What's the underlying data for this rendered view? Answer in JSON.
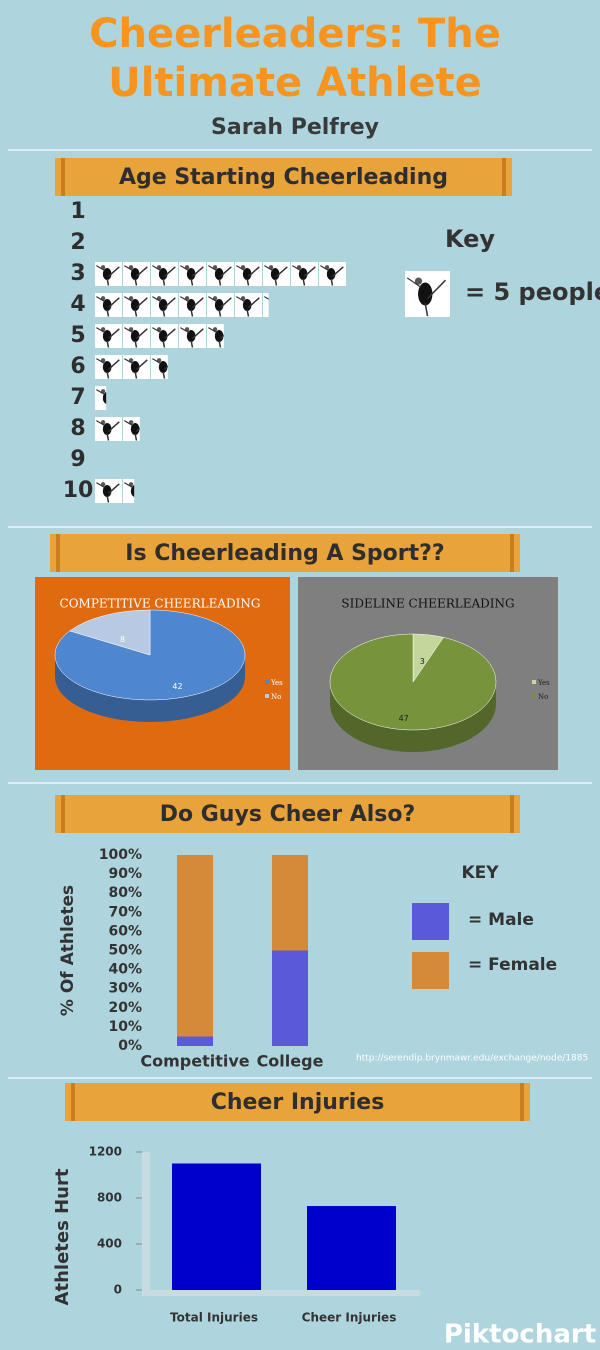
{
  "header": {
    "title_lines": [
      "Cheerleaders: The",
      "Ultimate Athlete"
    ],
    "author": "Sarah Pelfrey"
  },
  "sections": [
    "Age Starting Cheerleading",
    "Is Cheerleading A Sport??",
    "Do Guys Cheer Also?",
    "Cheer Injuries"
  ],
  "chart_data": [
    {
      "type": "pictograph",
      "categories": [
        "1",
        "2",
        "3",
        "4",
        "5",
        "6",
        "7",
        "8",
        "9",
        "10"
      ],
      "values": [
        0,
        0,
        45,
        31,
        23,
        13,
        2,
        8,
        0,
        7
      ],
      "unit": 5,
      "legend_title": "Key",
      "legend_label": "= 5 people"
    },
    {
      "type": "pie",
      "title": "COMPETITIVE CHEERLEADING",
      "categories": [
        "Yes",
        "No"
      ],
      "values": [
        42,
        8
      ],
      "colors": [
        "#4f86d0",
        "#b7c9e3"
      ],
      "background": "#e06a10"
    },
    {
      "type": "pie",
      "title": "SIDELINE CHEERLEADING",
      "categories": [
        "Yes",
        "No"
      ],
      "values": [
        3,
        47
      ],
      "colors": [
        "#c3d69b",
        "#77933c"
      ],
      "background": "#7f7f7f"
    },
    {
      "type": "stacked_bar",
      "categories": [
        "Competitive",
        "College"
      ],
      "series": [
        {
          "name": "= Male",
          "color": "#5959d9",
          "values": [
            5,
            50
          ]
        },
        {
          "name": "= Female",
          "color": "#d58a3a",
          "values": [
            95,
            50
          ]
        }
      ],
      "ylim": [
        0,
        100
      ],
      "yticks": [
        {
          "value": 0,
          "label": "0%"
        },
        {
          "value": 10,
          "label": "10%"
        },
        {
          "value": 20,
          "label": "20%"
        },
        {
          "value": 30,
          "label": "30%"
        },
        {
          "value": 40,
          "label": "40%"
        },
        {
          "value": 50,
          "label": "50%"
        },
        {
          "value": 60,
          "label": "60%"
        },
        {
          "value": 70,
          "label": "70%"
        },
        {
          "value": 80,
          "label": "80%"
        },
        {
          "value": 90,
          "label": "90%"
        },
        {
          "value": 100,
          "label": "100%"
        }
      ],
      "ylabel": "% Of Athletes",
      "legend_title": "KEY"
    },
    {
      "type": "bar",
      "categories": [
        "Total Injuries",
        "Cheer Injuries"
      ],
      "values": [
        1100,
        730
      ],
      "color": "#0000cc",
      "ylim": [
        0,
        1200
      ],
      "yticks": [
        0,
        400,
        800,
        1200
      ],
      "ylabel": "Athletes Hurt"
    }
  ],
  "source": "http://serendip.brynmawr.edu/exchange/node/1885",
  "footer": "Piktochart"
}
